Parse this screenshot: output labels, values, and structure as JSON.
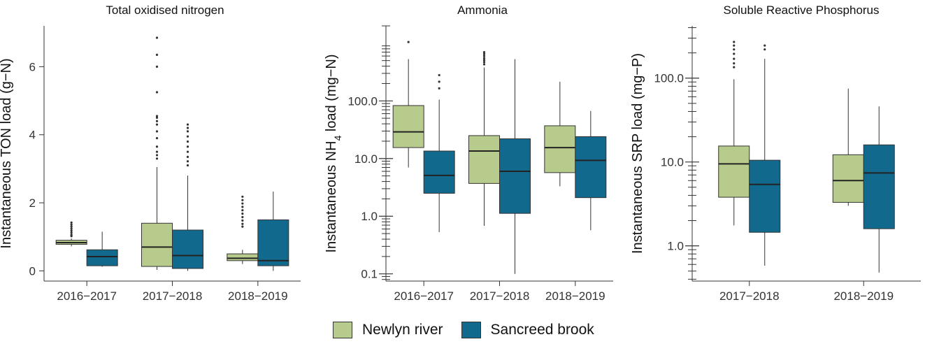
{
  "colors": {
    "newlyn": "#b7cc8c",
    "sancreed": "#12698e",
    "line": "#333333",
    "axis": "#333333"
  },
  "legend": {
    "items": [
      {
        "label": "Newlyn river",
        "color": "#b7cc8c"
      },
      {
        "label": "Sancreed brook",
        "color": "#12698e"
      }
    ]
  },
  "chart_data": [
    {
      "type": "box",
      "title": "Total oxidised nitrogen",
      "ylabel": "Instantaneous TON load (g−N)",
      "yscale": "linear",
      "ylim": [
        -0.3,
        7.2
      ],
      "yticks": [
        0,
        2,
        4,
        6
      ],
      "yticklabels": [
        "0",
        "2",
        "4",
        "6"
      ],
      "categories": [
        "2016−2017",
        "2017−2018",
        "2018−2019"
      ],
      "series": [
        {
          "name": "Newlyn river",
          "color": "#b7cc8c",
          "boxes": [
            {
              "category": "2016−2017",
              "whisker_low": 0.72,
              "q1": 0.78,
              "median": 0.83,
              "q3": 0.9,
              "whisker_high": 0.95,
              "outliers": [
                1.02,
                1.06,
                1.12,
                1.18,
                1.24,
                1.3,
                1.36,
                1.42
              ]
            },
            {
              "category": "2017−2018",
              "whisker_low": 0.03,
              "q1": 0.13,
              "median": 0.7,
              "q3": 1.4,
              "whisker_high": 3.05,
              "outliers": [
                3.3,
                3.4,
                3.5,
                3.65,
                3.9,
                4.1,
                4.3,
                4.4,
                4.5,
                4.55,
                5.25,
                6.0,
                6.35,
                6.85
              ]
            },
            {
              "category": "2018−2019",
              "whisker_low": 0.2,
              "q1": 0.3,
              "median": 0.37,
              "q3": 0.5,
              "whisker_high": 0.62,
              "outliers": [
                1.3,
                1.38,
                1.48,
                1.58,
                1.68,
                1.78,
                1.88,
                1.98,
                2.08,
                2.18
              ]
            }
          ]
        },
        {
          "name": "Sancreed brook",
          "color": "#12698e",
          "boxes": [
            {
              "category": "2016−2017",
              "whisker_low": 0.12,
              "q1": 0.15,
              "median": 0.42,
              "q3": 0.62,
              "whisker_high": 1.15,
              "outliers": []
            },
            {
              "category": "2017−2018",
              "whisker_low": 0.0,
              "q1": 0.07,
              "median": 0.45,
              "q3": 1.2,
              "whisker_high": 2.8,
              "outliers": [
                3.1,
                3.22,
                3.35,
                3.5,
                3.65,
                3.8,
                3.95,
                4.1,
                4.2,
                4.3
              ]
            },
            {
              "category": "2018−2019",
              "whisker_low": 0.0,
              "q1": 0.15,
              "median": 0.3,
              "q3": 1.5,
              "whisker_high": 2.33,
              "outliers": []
            }
          ]
        }
      ]
    },
    {
      "type": "box",
      "title": "Ammonia",
      "ylabel": "Instantaneous NH4 load (mg−N)",
      "yscale": "log",
      "ylim": [
        0.075,
        2000
      ],
      "yticks": [
        0.1,
        1,
        10,
        100
      ],
      "yticklabels": [
        "0.1",
        "1.0",
        "10.0",
        "100.0"
      ],
      "categories": [
        "2016−2017",
        "2017−2018",
        "2018−2019"
      ],
      "series": [
        {
          "name": "Newlyn river",
          "color": "#b7cc8c",
          "boxes": [
            {
              "category": "2016−2017",
              "whisker_low": 7,
              "q1": 15.5,
              "median": 29,
              "q3": 83,
              "whisker_high": 530,
              "outliers": [
                1050
              ]
            },
            {
              "category": "2017−2018",
              "whisker_low": 0.68,
              "q1": 3.7,
              "median": 13.5,
              "q3": 25,
              "whisker_high": 380,
              "outliers": [
                430,
                470,
                510,
                550,
                600,
                650,
                700
              ]
            },
            {
              "category": "2018−2019",
              "whisker_low": 3.3,
              "q1": 5.7,
              "median": 15.5,
              "q3": 37,
              "whisker_high": 215,
              "outliers": []
            }
          ]
        },
        {
          "name": "Sancreed brook",
          "color": "#12698e",
          "boxes": [
            {
              "category": "2016−2017",
              "whisker_low": 0.53,
              "q1": 2.5,
              "median": 5.1,
              "q3": 13.5,
              "whisker_high": 105,
              "outliers": [
                165,
                215,
                280
              ]
            },
            {
              "category": "2017−2018",
              "whisker_low": 0.1,
              "q1": 1.12,
              "median": 6,
              "q3": 22,
              "whisker_high": 530,
              "outliers": []
            },
            {
              "category": "2018−2019",
              "whisker_low": 0.57,
              "q1": 2.1,
              "median": 9.3,
              "q3": 24,
              "whisker_high": 67,
              "outliers": []
            }
          ]
        }
      ]
    },
    {
      "type": "box",
      "title": "Soluble Reactive Phosphorus",
      "ylabel": "Instantaneous SRP load (mg−P)",
      "yscale": "log",
      "ylim": [
        0.38,
        420
      ],
      "yticks": [
        1,
        10,
        100
      ],
      "yticklabels": [
        "1.0",
        "10.0",
        "100.0"
      ],
      "categories": [
        "2017−2018",
        "2018−2019"
      ],
      "series": [
        {
          "name": "Newlyn river",
          "color": "#b7cc8c",
          "boxes": [
            {
              "category": "2017−2018",
              "whisker_low": 1.75,
              "q1": 3.8,
              "median": 9.5,
              "q3": 15.5,
              "whisker_high": 97,
              "outliers": [
                135,
                150,
                170,
                195,
                220,
                245,
                270
              ]
            },
            {
              "category": "2018−2019",
              "whisker_low": 3.0,
              "q1": 3.3,
              "median": 6.0,
              "q3": 12.2,
              "whisker_high": 75,
              "outliers": []
            }
          ]
        },
        {
          "name": "Sancreed brook",
          "color": "#12698e",
          "boxes": [
            {
              "category": "2017−2018",
              "whisker_low": 0.58,
              "q1": 1.45,
              "median": 5.4,
              "q3": 10.5,
              "whisker_high": 170,
              "outliers": [
                220,
                245
              ]
            },
            {
              "category": "2018−2019",
              "whisker_low": 0.48,
              "q1": 1.6,
              "median": 7.4,
              "q3": 16,
              "whisker_high": 46,
              "outliers": []
            }
          ]
        }
      ]
    }
  ]
}
